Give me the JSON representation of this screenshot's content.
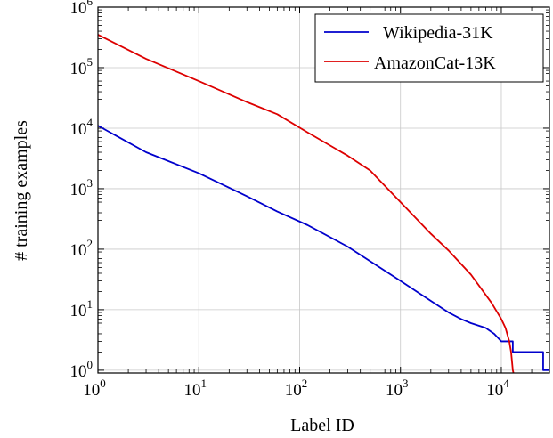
{
  "chart_data": {
    "type": "line",
    "xlabel": "Label ID",
    "ylabel": "# training examples",
    "x_scale": "log",
    "y_scale": "log",
    "xlim": [
      1,
      30000
    ],
    "ylim": [
      0.9,
      1000000
    ],
    "grid": true,
    "legend_position": "top-right",
    "x_ticks": [
      {
        "base": "10",
        "exp": "0",
        "value": 1
      },
      {
        "base": "10",
        "exp": "1",
        "value": 10
      },
      {
        "base": "10",
        "exp": "2",
        "value": 100
      },
      {
        "base": "10",
        "exp": "3",
        "value": 1000
      },
      {
        "base": "10",
        "exp": "4",
        "value": 10000
      }
    ],
    "y_ticks": [
      {
        "base": "10",
        "exp": "0",
        "value": 1
      },
      {
        "base": "10",
        "exp": "1",
        "value": 10
      },
      {
        "base": "10",
        "exp": "2",
        "value": 100
      },
      {
        "base": "10",
        "exp": "3",
        "value": 1000
      },
      {
        "base": "10",
        "exp": "4",
        "value": 10000
      },
      {
        "base": "10",
        "exp": "5",
        "value": 100000
      },
      {
        "base": "10",
        "exp": "6",
        "value": 1000000
      }
    ],
    "series": [
      {
        "name": "Wikipedia-31K",
        "color": "#0000cc",
        "points": [
          [
            1,
            11000
          ],
          [
            3,
            4000
          ],
          [
            10,
            1800
          ],
          [
            30,
            750
          ],
          [
            60,
            420
          ],
          [
            120,
            250
          ],
          [
            300,
            110
          ],
          [
            1000,
            30
          ],
          [
            2000,
            14
          ],
          [
            3000,
            9
          ],
          [
            4000,
            7
          ],
          [
            5000,
            6
          ],
          [
            7000,
            5
          ],
          [
            8500,
            4
          ],
          [
            10000,
            3
          ],
          [
            13000,
            3
          ],
          [
            13000,
            2
          ],
          [
            20000,
            2
          ],
          [
            26000,
            2
          ],
          [
            26000,
            1
          ],
          [
            30000,
            1
          ]
        ]
      },
      {
        "name": "AmazonCat-13K",
        "color": "#dd0000",
        "points": [
          [
            1,
            350000
          ],
          [
            3,
            140000
          ],
          [
            10,
            60000
          ],
          [
            30,
            27000
          ],
          [
            60,
            17000
          ],
          [
            120,
            8500
          ],
          [
            300,
            3500
          ],
          [
            500,
            2000
          ],
          [
            1000,
            600
          ],
          [
            2000,
            180
          ],
          [
            3000,
            95
          ],
          [
            5000,
            38
          ],
          [
            8000,
            13
          ],
          [
            10000,
            7
          ],
          [
            11000,
            5
          ],
          [
            12000,
            3
          ],
          [
            12500,
            2
          ],
          [
            13000,
            1
          ],
          [
            13200,
            0.9
          ]
        ]
      }
    ]
  }
}
